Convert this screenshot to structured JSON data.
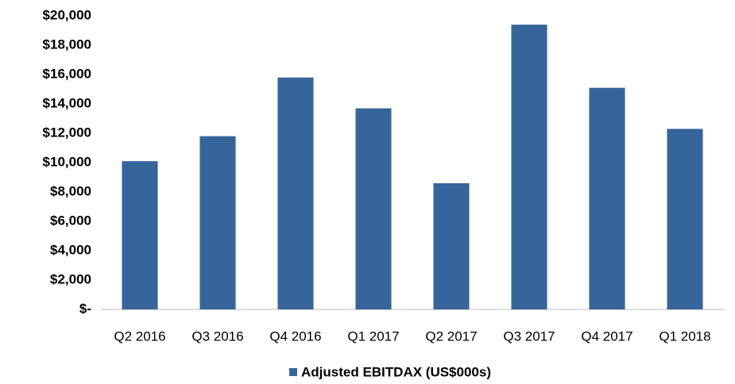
{
  "chart_data": {
    "type": "bar",
    "categories": [
      "Q2 2016",
      "Q3 2016",
      "Q4 2016",
      "Q1 2017",
      "Q2 2017",
      "Q3 2017",
      "Q4 2017",
      "Q1 2018"
    ],
    "series": [
      {
        "name": "Adjusted EBITDAX (US$000s)",
        "color": "#35659a",
        "values": [
          10100,
          11800,
          15800,
          13700,
          8600,
          19400,
          15100,
          12300
        ]
      }
    ],
    "ylim": [
      0,
      20000
    ],
    "yticks": [
      {
        "value": 0,
        "label": "$-"
      },
      {
        "value": 2000,
        "label": "$2,000"
      },
      {
        "value": 4000,
        "label": "$4,000"
      },
      {
        "value": 6000,
        "label": "$6,000"
      },
      {
        "value": 8000,
        "label": "$8,000"
      },
      {
        "value": 10000,
        "label": "$10,000"
      },
      {
        "value": 12000,
        "label": "$12,000"
      },
      {
        "value": 14000,
        "label": "$14,000"
      },
      {
        "value": 16000,
        "label": "$16,000"
      },
      {
        "value": 18000,
        "label": "$18,000"
      },
      {
        "value": 20000,
        "label": "$20,000"
      }
    ],
    "grid": false,
    "legend": "bottom"
  }
}
